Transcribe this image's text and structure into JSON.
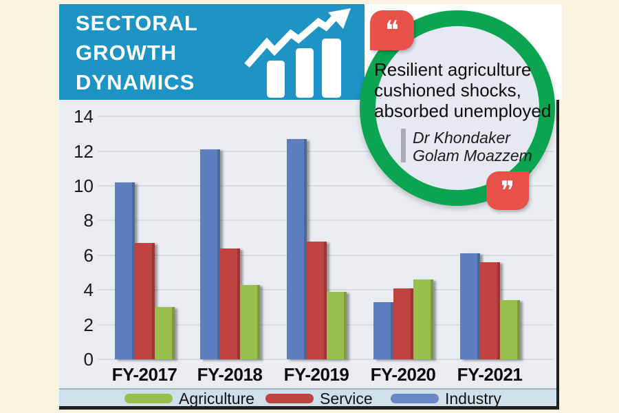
{
  "page": {
    "background_color": "#fbf3e2",
    "panel_color": "#ffffff"
  },
  "header": {
    "title_lines": [
      "SECTORAL",
      "GROWTH",
      "DYNAMICS"
    ],
    "banner_color": "#1d94c4",
    "icon": "bar-chart-with-rising-arrow"
  },
  "quote": {
    "lines": [
      "Resilient agriculture",
      "cushioned shocks,",
      "absorbed unemployed"
    ],
    "attribution_lines": [
      "Dr Khondaker",
      "Golam Moazzem"
    ],
    "open_glyph": "❝",
    "close_glyph": "❞",
    "ring_color": "#0ba551",
    "badge_color": "#e8514a",
    "bubble_fill": "#e6e9f2"
  },
  "chart_data": {
    "type": "bar",
    "title": "Sectoral Growth Dynamics",
    "categories": [
      "FY-2017",
      "FY-2018",
      "FY-2019",
      "FY-2020",
      "FY-2021"
    ],
    "series": [
      {
        "name": "Industry",
        "color": "#5e7fbf",
        "edge_color": "#49689e",
        "values": [
          10.2,
          12.1,
          12.7,
          3.3,
          6.1
        ]
      },
      {
        "name": "Service",
        "color": "#bf4441",
        "edge_color": "#9c3533",
        "values": [
          6.7,
          6.4,
          6.8,
          4.1,
          5.6
        ]
      },
      {
        "name": "Agriculture",
        "color": "#98bf4b",
        "edge_color": "#7b9e38",
        "values": [
          3.0,
          4.3,
          3.9,
          4.6,
          3.4
        ]
      }
    ],
    "xlabel": "",
    "ylabel": "",
    "ylim": [
      0,
      14
    ],
    "yticks": [
      0,
      2,
      4,
      6,
      8,
      10,
      12,
      14
    ],
    "grid": true,
    "plot_bg": "#e9edf2",
    "grid_color": "#d7dbe1",
    "legend": {
      "position": "bottom",
      "items": [
        {
          "label": "Agriculture",
          "color": "#98bf4b"
        },
        {
          "label": "Service",
          "color": "#bf4441"
        },
        {
          "label": "Industry",
          "color": "#6a86c4"
        }
      ]
    }
  }
}
